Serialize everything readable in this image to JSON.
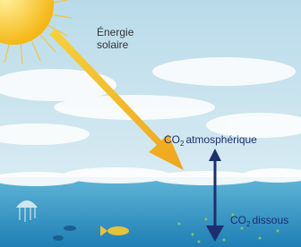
{
  "labels": {
    "solar_energy": {
      "line1": "Énergie",
      "line2": "solaire"
    },
    "co2_atmospheric": {
      "main": "CO",
      "sub": "2",
      "rest": "atmosphérique"
    },
    "co2_dissolved": {
      "main": "CO",
      "sub": "2",
      "rest": "dissous"
    }
  }
}
